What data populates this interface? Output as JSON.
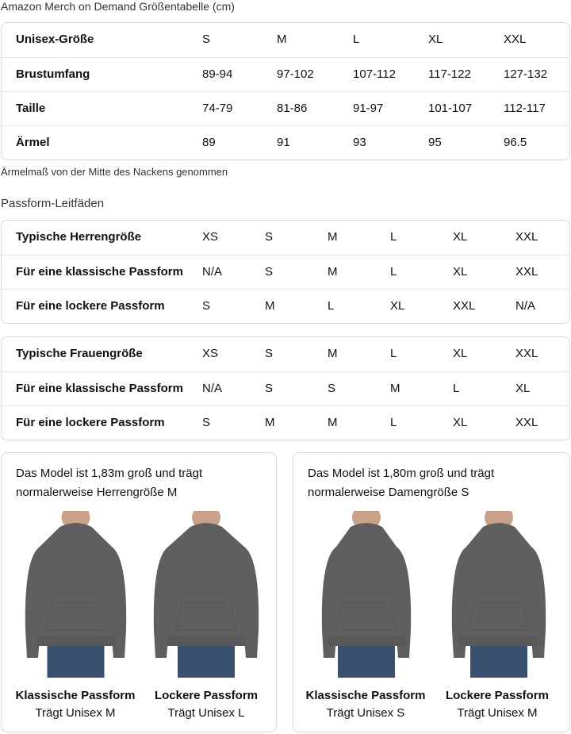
{
  "size_chart": {
    "title": "Amazon Merch on Demand Größentabelle (cm)",
    "rows": [
      [
        "Unisex-Größe",
        "S",
        "M",
        "L",
        "XL",
        "XXL"
      ],
      [
        "Brustumfang",
        "89-94",
        "97-102",
        "107-112",
        "117-122",
        "127-132"
      ],
      [
        "Taille",
        "74-79",
        "81-86",
        "91-97",
        "101-107",
        "112-117"
      ],
      [
        "Ärmel",
        "89",
        "91",
        "93",
        "95",
        "96.5"
      ]
    ],
    "note": "Ärmelmaß von der Mitte des Nackens genommen"
  },
  "fit_guides": {
    "title": "Passform-Leitfäden",
    "men": [
      [
        "Typische Herrengröße",
        "XS",
        "S",
        "M",
        "L",
        "XL",
        "XXL"
      ],
      [
        "Für eine klassische Passform",
        "N/A",
        "S",
        "M",
        "L",
        "XL",
        "XXL"
      ],
      [
        "Für eine lockere Passform",
        "S",
        "M",
        "L",
        "XL",
        "XXL",
        "N/A"
      ]
    ],
    "women": [
      [
        "Typische Frauengröße",
        "XS",
        "S",
        "M",
        "L",
        "XL",
        "XXL"
      ],
      [
        "Für eine klassische Passform",
        "N/A",
        "S",
        "S",
        "M",
        "L",
        "XL"
      ],
      [
        "Für eine lockere Passform",
        "S",
        "M",
        "M",
        "L",
        "XL",
        "XXL"
      ]
    ]
  },
  "models": [
    {
      "text": "Das Model ist 1,83m groß und trägt normalerweise Herrengröße M",
      "fits": [
        {
          "name": "Klassische Passform",
          "wears": "Trägt Unisex M"
        },
        {
          "name": "Lockere Passform",
          "wears": "Trägt Unisex L"
        }
      ]
    },
    {
      "text": "Das Model ist 1,80m groß und trägt normalerweise Damengröße S",
      "fits": [
        {
          "name": "Klassische Passform",
          "wears": "Trägt Unisex S"
        },
        {
          "name": "Lockere Passform",
          "wears": "Trägt Unisex M"
        }
      ]
    }
  ],
  "colors": {
    "hoodie": "#5f5f5f",
    "jeans": "#3a5070",
    "border": "#d5d9d9"
  }
}
